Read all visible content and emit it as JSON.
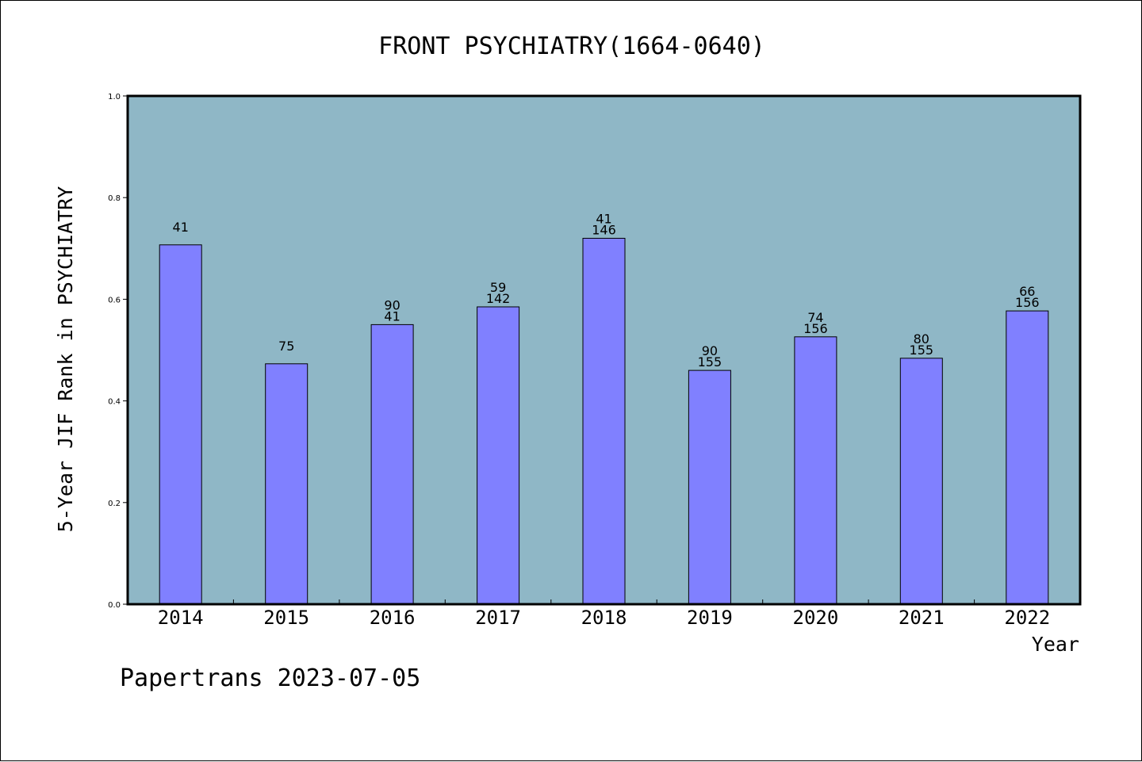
{
  "chart_data": {
    "type": "bar",
    "title": "FRONT PSYCHIATRY(1664-0640)",
    "xlabel": "Year",
    "ylabel": "5-Year JIF Rank in PSYCHIATRY",
    "ylim": [
      0,
      1.0
    ],
    "yticks": [
      "0.0",
      "0.2",
      "0.4",
      "0.6",
      "0.8",
      "1.0"
    ],
    "grid": false,
    "categories": [
      "2014",
      "2015",
      "2016",
      "2017",
      "2018",
      "2019",
      "2020",
      "2021",
      "2022"
    ],
    "values": [
      0.707,
      0.473,
      0.55,
      0.585,
      0.72,
      0.46,
      0.526,
      0.484,
      0.577
    ],
    "labels": [
      [
        "41"
      ],
      [
        "75"
      ],
      [
        "90",
        "41"
      ],
      [
        "59",
        "142"
      ],
      [
        "41",
        "146"
      ],
      [
        "90",
        "155"
      ],
      [
        "74",
        "156"
      ],
      [
        "80",
        "155"
      ],
      [
        "66",
        "156"
      ]
    ],
    "colors": {
      "plot_bg": "#8fb7c6",
      "bar": "#8080ff",
      "bar_edge": "#000000"
    }
  },
  "footer": "Papertrans 2023-07-05"
}
